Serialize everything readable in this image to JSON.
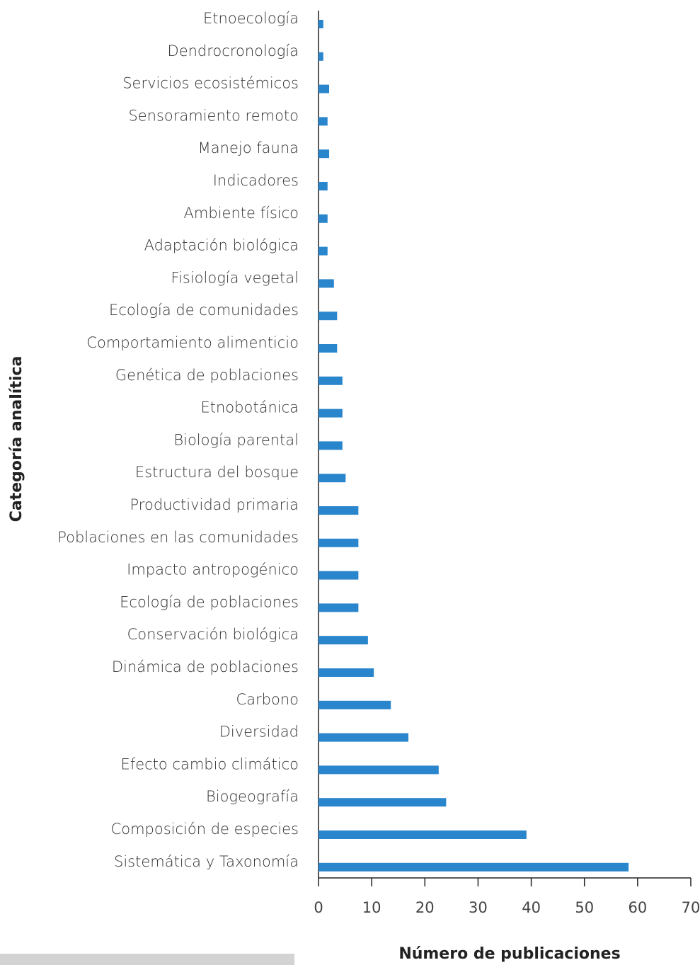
{
  "chart_data": {
    "type": "barh",
    "xlabel": "Número de publicaciones",
    "ylabel": "Categoría analítica",
    "color": "#2a86cc",
    "categories": [
      "Etnoecología",
      "Dendrocronología",
      "Servicios ecosistémicos",
      "Sensoramiento remoto",
      "Manejo fauna",
      "Indicadores",
      "Ambiente físico",
      "Adaptación biológica",
      "Fisiología vegetal",
      "Ecología de comunidades",
      "Comportamiento alimenticio",
      "Genética de poblaciones",
      "Etnobotánica",
      "Biología parental",
      "Estructura del bosque",
      "Productividad primaria",
      "Poblaciones en las comunidades",
      "Impacto antropogénico",
      "Ecología de poblaciones",
      "Conservación biológica",
      "Dinámica de poblaciones",
      "Carbono",
      "Diversidad",
      "Efecto cambio climático",
      "Biogeografía",
      "Composición de especies",
      "Sistemática y Taxonomía"
    ],
    "values": [
      0.9,
      0.9,
      2.0,
      1.7,
      2.0,
      1.7,
      1.7,
      1.7,
      2.9,
      3.5,
      3.5,
      4.5,
      4.5,
      4.5,
      5.1,
      7.5,
      7.5,
      7.5,
      7.5,
      9.3,
      10.4,
      13.6,
      16.9,
      22.6,
      24.0,
      39.1,
      58.3
    ],
    "xlim": [
      0,
      70
    ],
    "xticks": [
      0,
      10,
      20,
      30,
      40,
      50,
      60,
      70
    ]
  }
}
